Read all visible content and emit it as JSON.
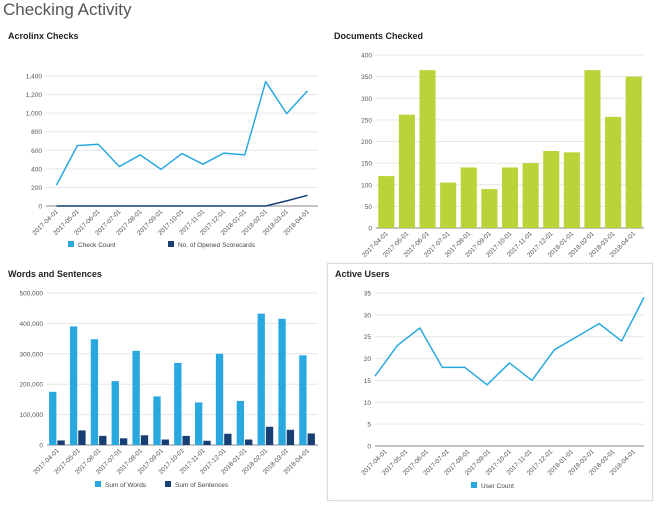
{
  "page": {
    "title": "Checking Activity"
  },
  "chart_data": [
    {
      "id": "acrolinx",
      "type": "line",
      "title": "Acrolinx Checks",
      "categories": [
        "2017-04-01",
        "2017-05-01",
        "2017-06-01",
        "2017-07-01",
        "2017-08-01",
        "2017-09-01",
        "2017-10-01",
        "2017-11-01",
        "2017-12-01",
        "2018-01-01",
        "2018-02-01",
        "2018-03-01",
        "2018-04-01"
      ],
      "series": [
        {
          "name": "Check Count",
          "color": "#29a8e0",
          "values": [
            225,
            650,
            665,
            425,
            550,
            395,
            565,
            450,
            570,
            550,
            1340,
            995,
            1240
          ]
        },
        {
          "name": "No. of Opened Scorecards",
          "color": "#173f73",
          "values": [
            0,
            0,
            0,
            0,
            0,
            0,
            0,
            0,
            0,
            0,
            0,
            55,
            115
          ]
        }
      ],
      "ylim": [
        0,
        1400
      ],
      "yticks": [
        0,
        200,
        400,
        600,
        800,
        1000,
        1200,
        1400
      ],
      "ytick_labels": [
        "0",
        "200",
        "400",
        "600",
        "800",
        "1,000",
        "1,200",
        "1,400"
      ],
      "legend": "bottom"
    },
    {
      "id": "documents",
      "type": "bar",
      "title": "Documents Checked",
      "categories": [
        "2017-04-01",
        "2017-05-01",
        "2017-06-01",
        "2017-07-01",
        "2017-08-01",
        "2017-09-01",
        "2017-10-01",
        "2017-11-01",
        "2017-12-01",
        "2018-01-01",
        "2018-02-01",
        "2018-03-01",
        "2018-04-01"
      ],
      "series": [
        {
          "name": "Documents",
          "color": "#b9d439",
          "values": [
            120,
            262,
            365,
            105,
            140,
            90,
            140,
            150,
            178,
            175,
            365,
            257,
            350
          ]
        }
      ],
      "ylim": [
        0,
        400
      ],
      "yticks": [
        0,
        50,
        100,
        150,
        200,
        250,
        300,
        350,
        400
      ],
      "ytick_labels": [
        "0",
        "50",
        "100",
        "150",
        "200",
        "250",
        "300",
        "350",
        "400"
      ]
    },
    {
      "id": "words",
      "type": "bar",
      "title": "Words and Sentences",
      "categories": [
        "2017-04-01",
        "2017-05-01",
        "2017-06-01",
        "2017-07-01",
        "2017-08-01",
        "2017-09-01",
        "2017-10-01",
        "2017-11-01",
        "2017-12-01",
        "2018-01-01",
        "2018-02-01",
        "2018-03-01",
        "2018-04-01"
      ],
      "series": [
        {
          "name": "Sum of Words",
          "color": "#29a8e0",
          "values": [
            175000,
            390000,
            348000,
            210000,
            310000,
            160000,
            270000,
            140000,
            300000,
            145000,
            432000,
            415000,
            295000
          ]
        },
        {
          "name": "Sum of Sentences",
          "color": "#173f73",
          "values": [
            15000,
            48000,
            30000,
            22000,
            32000,
            18000,
            30000,
            14000,
            37000,
            18000,
            60000,
            50000,
            38000
          ]
        }
      ],
      "ylim": [
        0,
        500000
      ],
      "yticks": [
        0,
        100000,
        200000,
        300000,
        400000,
        500000
      ],
      "ytick_labels": [
        "0",
        "100,000",
        "200,000",
        "300,000",
        "400,000",
        "500,000"
      ],
      "legend": "bottom"
    },
    {
      "id": "active",
      "type": "line",
      "title": "Active Users",
      "categories": [
        "2017-04-01",
        "2017-05-01",
        "2017-06-01",
        "2017-07-01",
        "2017-08-01",
        "2017-09-01",
        "2017-10-01",
        "2017-11-01",
        "2017-12-01",
        "2018-01-01",
        "2018-02-01",
        "2018-03-01",
        "2018-04-01"
      ],
      "series": [
        {
          "name": "User Count",
          "color": "#29a8e0",
          "values": [
            16,
            23,
            27,
            18,
            18,
            14,
            19,
            15,
            22,
            25,
            28,
            24,
            34
          ]
        }
      ],
      "ylim": [
        0,
        35
      ],
      "yticks": [
        0,
        5,
        10,
        15,
        20,
        25,
        30,
        35
      ],
      "ytick_labels": [
        "0",
        "5",
        "10",
        "15",
        "20",
        "25",
        "30",
        "35"
      ],
      "legend": "bottom"
    }
  ]
}
